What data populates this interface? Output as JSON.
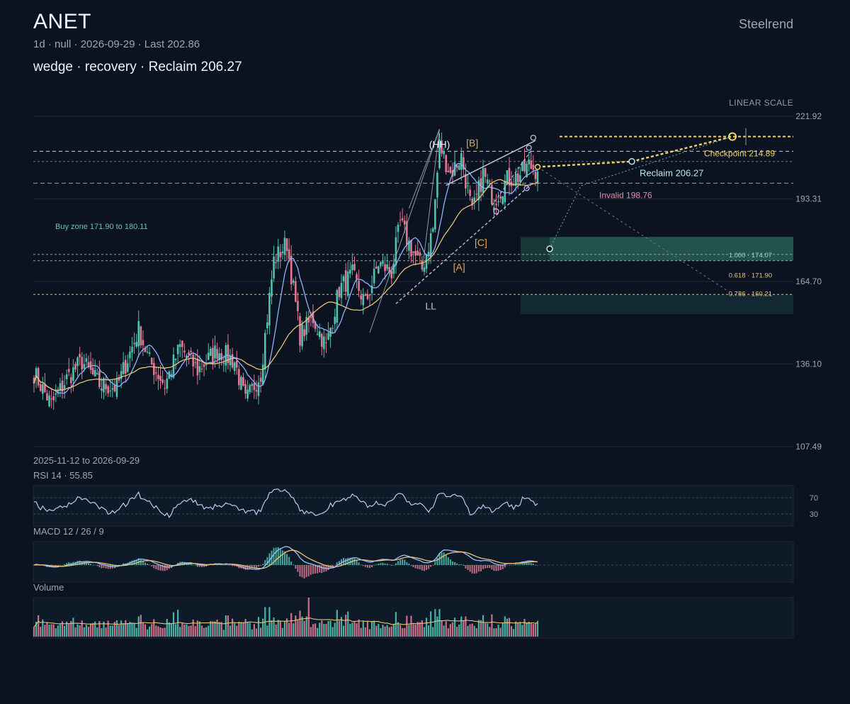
{
  "header": {
    "ticker": "ANET",
    "meta": "1d · null · 2026-09-29 · Last 202.86",
    "subtitle": "wedge · recovery · Reclaim 206.27",
    "brand": "Steelrend",
    "scale_label": "LINEAR SCALE",
    "date_range": "2025-11-12 to 2026-09-29"
  },
  "panels": {
    "rsi_label": "RSI 14 · 55.85",
    "macd_label": "MACD 12 / 26 / 9",
    "volume_label": "Volume"
  },
  "colors": {
    "background": "#0b1220",
    "up": "#4fc3b0",
    "down": "#e07a93",
    "ma_fast": "#8fb3ff",
    "ma_slow": "#e8c27a",
    "target": "#f2d36b",
    "invalid": "#e38aa7",
    "reclaim": "#bfe8df",
    "zone": "#2f6b60"
  },
  "chart_data": {
    "type": "candlestick",
    "ticker": "ANET",
    "interval": "1d",
    "start": "2025-11-12",
    "end": "2026-09-29",
    "last": 202.86,
    "ylim": [
      107.49,
      221.92
    ],
    "y_ticks": [
      221.92,
      193.31,
      164.7,
      136.1,
      107.49
    ],
    "anchors": [
      [
        0,
        133
      ],
      [
        8,
        122
      ],
      [
        15,
        131
      ],
      [
        22,
        137
      ],
      [
        30,
        129
      ],
      [
        38,
        128
      ],
      [
        48,
        148
      ],
      [
        53,
        137
      ],
      [
        60,
        129
      ],
      [
        67,
        142
      ],
      [
        75,
        134
      ],
      [
        84,
        141
      ],
      [
        92,
        137
      ],
      [
        97,
        123
      ],
      [
        104,
        133
      ],
      [
        110,
        172
      ],
      [
        116,
        178
      ],
      [
        122,
        146
      ],
      [
        128,
        152
      ],
      [
        134,
        142
      ],
      [
        140,
        162
      ],
      [
        146,
        167
      ],
      [
        152,
        157
      ],
      [
        158,
        171
      ],
      [
        164,
        168
      ],
      [
        168,
        185
      ],
      [
        173,
        176
      ],
      [
        178,
        169
      ],
      [
        183,
        183
      ],
      [
        186,
        212
      ],
      [
        191,
        202
      ],
      [
        196,
        208
      ],
      [
        201,
        188
      ],
      [
        206,
        202
      ],
      [
        211,
        193
      ],
      [
        217,
        200
      ],
      [
        222,
        201
      ],
      [
        227,
        205
      ],
      [
        231,
        202.86
      ]
    ],
    "volatility": 2.6,
    "ma_fast_period": 10,
    "ma_slow_period": 30,
    "levels": {
      "reclaim": 206.27,
      "checkpoint": 214.89,
      "invalid": 198.76,
      "upper_dashed": 209.8,
      "buy_zone": [
        171.9,
        180.11
      ],
      "lower_zone": [
        153.4,
        160.21
      ],
      "fib_1000": 174.07,
      "fib_0618": 171.9,
      "fib_0786": 160.21
    },
    "level_labels": {
      "reclaim": "Reclaim 206.27",
      "checkpoint": "Checkpoint 214.89",
      "invalid": "Invalid 198.76",
      "buy_zone": "Buy zone 171.90 to 180.11",
      "fib_1000": "1.000 · 174.07",
      "fib_0618": "0.618 · 171.90",
      "fib_0786": "0.786 · 160.21"
    },
    "wave_labels": [
      {
        "text": "(HH)",
        "i": 186,
        "price": 211,
        "color": "#eef2f8"
      },
      {
        "text": "[B]",
        "i": 201,
        "price": 211.5,
        "color": "#e8a24a"
      },
      {
        "text": "[C]",
        "i": 205,
        "price": 177,
        "color": "#e8a24a"
      },
      {
        "text": "[A]",
        "i": 195,
        "price": 168.5,
        "color": "#e8a24a"
      },
      {
        "text": "LL",
        "i": 182,
        "price": 155,
        "color": "#b9c3d1"
      }
    ],
    "rsi": {
      "period": 14,
      "value": 55.85,
      "levels": [
        70,
        30
      ]
    },
    "macd": {
      "fast": 12,
      "slow": 26,
      "signal": 9
    }
  }
}
